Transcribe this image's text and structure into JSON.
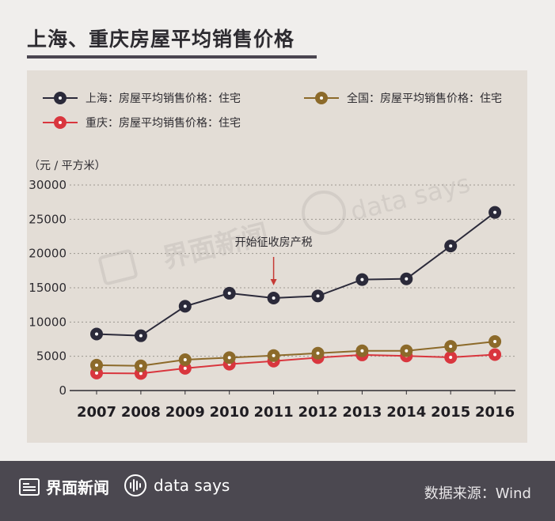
{
  "title": "上海、重庆房屋平均销售价格",
  "watermark": {
    "brand": "界面新闻",
    "tagline": "data says"
  },
  "footer": {
    "brand": "界面新闻",
    "tagline": "data says",
    "source": "数据来源：Wind"
  },
  "colors": {
    "shanghai": "#2b2a3a",
    "national": "#8c6a2a",
    "chongqing": "#d9363e",
    "panel": "#e3ddd6",
    "footer": "#4b4850"
  },
  "chart_data": {
    "type": "line",
    "unit_label": "（元 / 平方米）",
    "categories": [
      "2007",
      "2008",
      "2009",
      "2010",
      "2011",
      "2012",
      "2013",
      "2014",
      "2015",
      "2016"
    ],
    "ylim": [
      0,
      30000
    ],
    "yticks": [
      0,
      5000,
      10000,
      15000,
      20000,
      25000,
      30000
    ],
    "grid": true,
    "legend_position": "top",
    "series": [
      {
        "name": "上海：房屋平均销售价格：住宅",
        "color": "#2b2a3a",
        "values": [
          8250,
          8000,
          12300,
          14200,
          13500,
          13800,
          16200,
          16300,
          21100,
          26000
        ]
      },
      {
        "name": "全国：房屋平均销售价格：住宅",
        "color": "#8c6a2a",
        "values": [
          3700,
          3600,
          4500,
          4800,
          5100,
          5450,
          5800,
          5800,
          6450,
          7150
        ]
      },
      {
        "name": "重庆：房屋平均销售价格：住宅",
        "color": "#d9363e",
        "values": [
          2550,
          2500,
          3250,
          3850,
          4300,
          4800,
          5200,
          5050,
          4850,
          5250
        ]
      }
    ],
    "annotation": {
      "text": "开始征收房产税",
      "category": "2011",
      "color": "#c63a35"
    }
  }
}
